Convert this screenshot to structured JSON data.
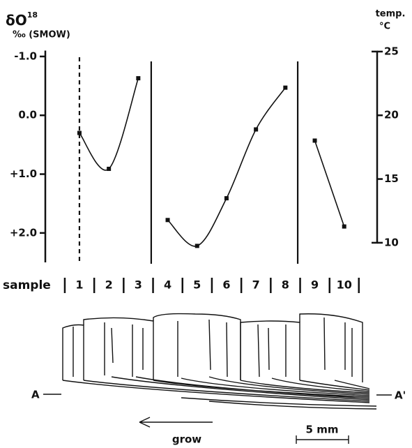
{
  "chart_data": {
    "type": "line",
    "ylabel": {
      "text": "δO",
      "superscript": "18"
    },
    "yunit": "‰ (SMOW)",
    "y2label": "temp.",
    "y2unit": "°C",
    "xlabel": "sample",
    "x": [
      1,
      2,
      3,
      4,
      5,
      6,
      7,
      8,
      9,
      10
    ],
    "xlim": [
      -0.16,
      11.12
    ],
    "series": [
      {
        "color": "#111111",
        "values": [
          0.3,
          0.91,
          -0.63,
          1.78,
          2.22,
          1.41,
          0.24,
          -0.47,
          0.43,
          1.89
        ]
      }
    ],
    "ylim": [
      -1.1,
      2.5
    ],
    "yinverted": true,
    "yticks": [
      {
        "value": -1,
        "label": "-1.0"
      },
      {
        "value": 0,
        "label": "0.0"
      },
      {
        "value": 1,
        "label": "+1.0"
      },
      {
        "value": 2,
        "label": "+2.0"
      }
    ],
    "y2lim": [
      9.5,
      26.2
    ],
    "y2ticks": [
      10,
      15,
      20,
      25
    ],
    "vlines": [
      {
        "x": 1.0,
        "style": "dashed"
      },
      {
        "x": 3.44,
        "style": "solid"
      },
      {
        "x": 8.42,
        "style": "solid"
      }
    ],
    "annotations": [
      "A",
      "A'",
      "grow",
      "5 mm"
    ]
  }
}
